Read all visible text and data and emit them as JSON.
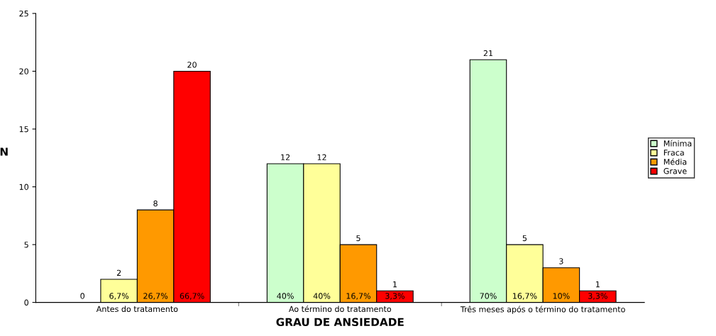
{
  "chart_data": {
    "type": "bar",
    "xlabel": "GRAU DE ANSIEDADE",
    "ylabel": "N",
    "categories": [
      "Antes do tratamento",
      "Ao término do tratamento",
      "Três meses após o término do tratamento"
    ],
    "series": [
      {
        "name": "Mínima",
        "color": "#ccffcc",
        "values": [
          0,
          12,
          21
        ]
      },
      {
        "name": "Fraca",
        "color": "#ffff99",
        "values": [
          2,
          12,
          5
        ]
      },
      {
        "name": "Média",
        "color": "#ff9900",
        "values": [
          8,
          5,
          3
        ]
      },
      {
        "name": "Grave",
        "color": "#ff0000",
        "values": [
          20,
          1,
          1
        ]
      }
    ],
    "annotations": [
      "6,7%",
      "26,7%",
      "66,7%",
      "40%",
      "40%",
      "16,7%",
      "3,3%",
      "70%",
      "16,7%",
      "10%",
      "3,3%"
    ],
    "ylim": [
      0,
      25
    ],
    "yticks": [
      0,
      5,
      10,
      15,
      20,
      25
    ],
    "data_labels": true,
    "grid": false,
    "legend": "right"
  }
}
